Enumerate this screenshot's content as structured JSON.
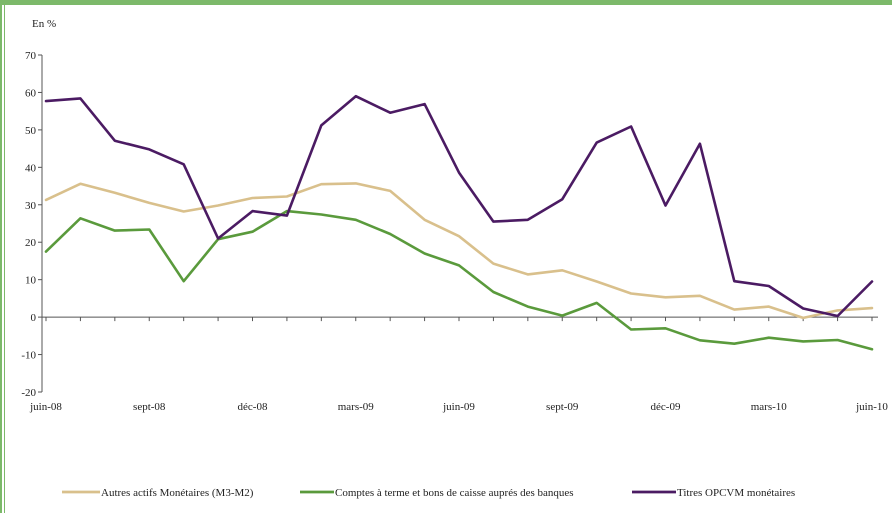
{
  "chart_data": {
    "type": "line",
    "unit_label": "En %",
    "ylim": [
      -20,
      70
    ],
    "yticks": [
      -20,
      -10,
      0,
      10,
      20,
      30,
      40,
      50,
      60,
      70
    ],
    "xtick_labels": [
      "juin-08",
      "sept-08",
      "déc-08",
      "mars-09",
      "juin-09",
      "sept-09",
      "déc-09",
      "mars-10",
      "juin-10"
    ],
    "x": [
      "2008-06",
      "2008-07",
      "2008-08",
      "2008-09",
      "2008-10",
      "2008-11",
      "2008-12",
      "2009-01",
      "2009-02",
      "2009-03",
      "2009-04",
      "2009-05",
      "2009-06",
      "2009-07",
      "2009-08",
      "2009-09",
      "2009-10",
      "2009-11",
      "2009-12",
      "2010-01",
      "2010-02",
      "2010-03",
      "2010-04",
      "2010-05",
      "2010-06"
    ],
    "series": [
      {
        "name": "Autres actifs Monétaires (M3-M2)",
        "color": "#d9c08c",
        "values": [
          31.3,
          35.6,
          33.2,
          30.5,
          28.2,
          29.8,
          31.8,
          32.2,
          35.5,
          35.7,
          33.7,
          26.0,
          21.6,
          14.3,
          11.4,
          12.5,
          9.5,
          6.3,
          5.3,
          5.7,
          2.0,
          2.8,
          -0.2,
          1.8,
          2.4
        ]
      },
      {
        "name": "Comptes à terme et bons de caisse auprés des banques",
        "color": "#5a9a3c",
        "values": [
          17.5,
          26.4,
          23.1,
          23.4,
          9.6,
          20.8,
          22.8,
          28.3,
          27.4,
          26.0,
          22.2,
          17.0,
          13.8,
          6.7,
          2.8,
          0.4,
          3.8,
          -3.3,
          -3.0,
          -6.2,
          -7.1,
          -5.5,
          -6.5,
          -6.1,
          -8.6
        ]
      },
      {
        "name": "Titres OPCVM monétaires",
        "color": "#4b1b63",
        "values": [
          57.7,
          58.4,
          47.1,
          44.8,
          40.8,
          21.0,
          28.3,
          27.1,
          51.2,
          59.0,
          54.6,
          56.9,
          38.6,
          25.5,
          26.0,
          31.5,
          46.6,
          50.9,
          29.8,
          46.3,
          9.6,
          8.3,
          2.3,
          0.3,
          9.5
        ]
      }
    ],
    "grid": false,
    "legend_position": "bottom"
  }
}
